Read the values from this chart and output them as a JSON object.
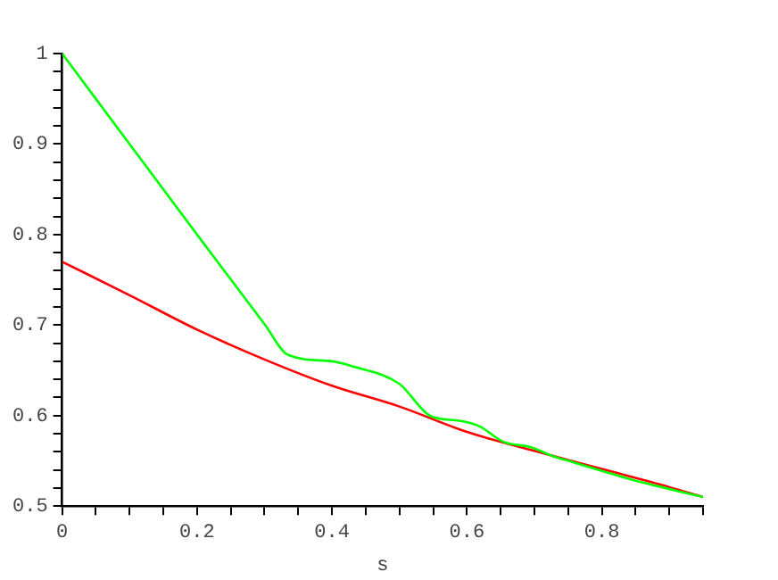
{
  "chart_data": {
    "type": "line",
    "xlabel": "s",
    "xlim": [
      0,
      0.95
    ],
    "ylim": [
      0.5,
      1
    ],
    "xticks": [
      0,
      {
        "value": 0.05,
        "label": null
      },
      {
        "value": 0.1,
        "label": null
      },
      {
        "value": 0.15,
        "label": null
      },
      0.2,
      {
        "value": 0.25,
        "label": null
      },
      {
        "value": 0.3,
        "label": null
      },
      {
        "value": 0.35,
        "label": null
      },
      0.4,
      {
        "value": 0.45,
        "label": null
      },
      {
        "value": 0.5,
        "label": null
      },
      {
        "value": 0.55,
        "label": null
      },
      0.6,
      {
        "value": 0.65,
        "label": null
      },
      {
        "value": 0.7,
        "label": null
      },
      {
        "value": 0.75,
        "label": null
      },
      0.8,
      {
        "value": 0.85,
        "label": null
      },
      {
        "value": 0.9,
        "label": null
      },
      {
        "value": 0.95,
        "label": null
      }
    ],
    "yticks": [
      0.5,
      {
        "value": 0.52,
        "label": null
      },
      {
        "value": 0.54,
        "label": null
      },
      {
        "value": 0.56,
        "label": null
      },
      {
        "value": 0.58,
        "label": null
      },
      0.6,
      {
        "value": 0.62,
        "label": null
      },
      {
        "value": 0.64,
        "label": null
      },
      {
        "value": 0.66,
        "label": null
      },
      {
        "value": 0.68,
        "label": null
      },
      0.7,
      {
        "value": 0.72,
        "label": null
      },
      {
        "value": 0.74,
        "label": null
      },
      {
        "value": 0.76,
        "label": null
      },
      {
        "value": 0.78,
        "label": null
      },
      0.8,
      {
        "value": 0.82,
        "label": null
      },
      {
        "value": 0.84,
        "label": null
      },
      {
        "value": 0.86,
        "label": null
      },
      {
        "value": 0.88,
        "label": null
      },
      0.9,
      {
        "value": 0.92,
        "label": null
      },
      {
        "value": 0.94,
        "label": null
      },
      {
        "value": 0.96,
        "label": null
      },
      {
        "value": 0.98,
        "label": null
      },
      1
    ],
    "grid": false,
    "legend": false,
    "marker": "none",
    "line_style": "solid",
    "series": [
      {
        "color": "#00ff00",
        "x": [
          0,
          0.1,
          0.2,
          0.3,
          0.335,
          0.4,
          0.428,
          0.5,
          0.545,
          0.591,
          0.619,
          0.654,
          0.695,
          0.728,
          0.755,
          0.8,
          0.845,
          0.883,
          0.95
        ],
        "values": [
          1,
          0.9,
          0.8,
          0.701,
          0.667,
          0.66,
          0.655,
          0.635,
          0.6,
          0.594,
          0.588,
          0.571,
          0.565,
          0.555,
          0.549,
          0.539,
          0.529,
          0.522,
          0.51
        ]
      },
      {
        "color": "#ff0000",
        "x": [
          0,
          0.1,
          0.2,
          0.3,
          0.4,
          0.5,
          0.6,
          0.7,
          0.8,
          0.9,
          0.95
        ],
        "values": [
          0.77,
          0.733,
          0.695,
          0.662,
          0.633,
          0.61,
          0.582,
          0.561,
          0.541,
          0.521,
          0.51
        ]
      }
    ]
  }
}
